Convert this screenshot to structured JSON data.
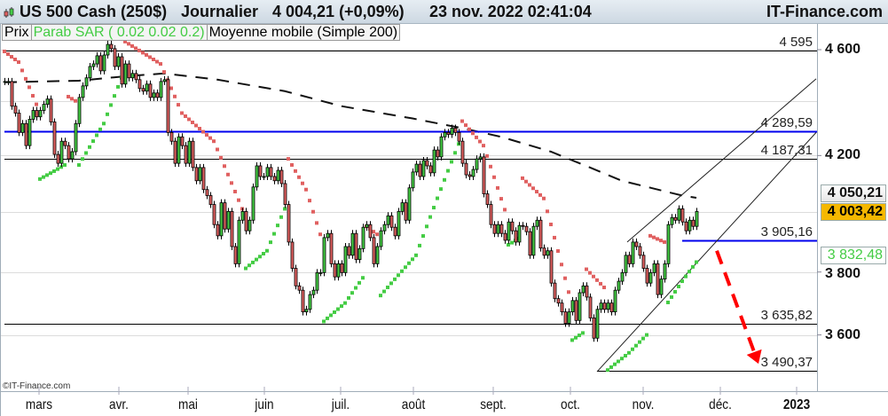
{
  "header": {
    "instrument": "US 500 Cash (250$)",
    "period": "Journalier",
    "last": "4 004,21 (+0,09%)",
    "datetime": "23 nov. 2022 02:41:04",
    "brand": "IT-Finance.com"
  },
  "legend": {
    "price": "Prix",
    "sar": "Parab SAR ( 0.02 0.02 0.2)",
    "ma": "Moyenne mobile (Simple 200)"
  },
  "copyright": "©IT-Finance.com",
  "colors": {
    "up": "#44cc44",
    "down": "#e06060",
    "sar_up": "#44cc44",
    "sar_down": "#e06060",
    "blue_level": "#0000ee",
    "ma": "#111111",
    "arrow": "#ff0000",
    "last_box": "#f5b800"
  },
  "chart_data": {
    "type": "candlestick",
    "y_scale": "log",
    "ylim": [
      3440,
      4780
    ],
    "y_ticks": [
      {
        "value": 4600,
        "label": "4 600"
      },
      {
        "value": 4200,
        "label": "4 200"
      },
      {
        "value": 3800,
        "label": "3 800"
      },
      {
        "value": 3600,
        "label": "3 600"
      }
    ],
    "y_gridlines": [
      4600,
      4400,
      4200,
      4000,
      3800,
      3600
    ],
    "x_ticks": [
      {
        "index": 9.75,
        "label": "mars"
      },
      {
        "index": 32.25,
        "label": "avr."
      },
      {
        "index": 51.75,
        "label": "mai"
      },
      {
        "index": 73.25,
        "label": "juin"
      },
      {
        "index": 94.75,
        "label": "juil."
      },
      {
        "index": 115.25,
        "label": "août"
      },
      {
        "index": 137.75,
        "label": "sept."
      },
      {
        "index": 159.5,
        "label": "oct."
      },
      {
        "index": 180,
        "label": "nov."
      },
      {
        "index": 201.75,
        "label": "déc."
      },
      {
        "index": 223.25,
        "label": "2023",
        "bold": true
      }
    ],
    "closes": [
      4476,
      4476,
      4382,
      4356,
      4284,
      4317,
      4236,
      4333,
      4366,
      4342,
      4366,
      4389,
      4409,
      4323,
      4204,
      4172,
      4252,
      4236,
      4188,
      4214,
      4317,
      4415,
      4459,
      4490,
      4534,
      4544,
      4576,
      4517,
      4579,
      4621,
      4604,
      4534,
      4572,
      4466,
      4544,
      4490,
      4507,
      4483,
      4449,
      4439,
      4466,
      4415,
      4432,
      4415,
      4476,
      4483,
      4284,
      4252,
      4172,
      4268,
      4236,
      4172,
      4252,
      4157,
      4110,
      4157,
      4079,
      4058,
      4027,
      3958,
      3920,
      4033,
      3943,
      4003,
      3884,
      3827,
      3973,
      4003,
      3937,
      3973,
      4088,
      4163,
      4125,
      4125,
      4157,
      4125,
      4110,
      4147,
      4100,
      4027,
      3899,
      3812,
      3755,
      3741,
      3672,
      3680,
      3727,
      3741,
      3798,
      3798,
      3914,
      3928,
      3827,
      3784,
      3827,
      3798,
      3884,
      3855,
      3928,
      3841,
      3877,
      3949,
      3958,
      3914,
      3827,
      3884,
      3937,
      3958,
      3988,
      3949,
      3920,
      4003,
      4033,
      3973,
      4085,
      4141,
      4169,
      4125,
      4182,
      4163,
      4138,
      4220,
      4195,
      4268,
      4284,
      4277,
      4300,
      4284,
      4252,
      4172,
      4131,
      4125,
      4150,
      4188,
      4195,
      4064,
      4027,
      3958,
      3928,
      3958,
      3928,
      3905,
      3967,
      3937,
      3899,
      3955,
      3952,
      3934,
      3855,
      3952,
      3973,
      3879,
      3855,
      3870,
      3764,
      3714,
      3700,
      3672,
      3636,
      3672,
      3708,
      3645,
      3733,
      3755,
      3719,
      3653,
      3590,
      3680,
      3700,
      3680,
      3700,
      3672,
      3741,
      3770,
      3798,
      3855,
      3827,
      3899,
      3884,
      3855,
      3812,
      3764,
      3798,
      3827,
      3727,
      3777,
      3827,
      3958,
      3982,
      3973,
      4012,
      3967,
      3937,
      3973,
      3952,
      4003
    ],
    "sar_segments": [
      {
        "dir": "down",
        "points": [
          [
            0,
            4593
          ],
          [
            4,
            4551
          ],
          [
            9,
            4389
          ]
        ]
      },
      {
        "dir": "up",
        "points": [
          [
            10,
            4116
          ],
          [
            14,
            4144
          ],
          [
            17,
            4166
          ]
        ]
      },
      {
        "dir": "down",
        "points": [
          [
            18,
            4418
          ],
          [
            20,
            4402
          ]
        ]
      },
      {
        "dir": "up",
        "points": [
          [
            21,
            4166
          ],
          [
            28,
            4317
          ],
          [
            33,
            4490
          ]
        ]
      },
      {
        "dir": "down",
        "points": [
          [
            34,
            4632
          ],
          [
            44,
            4544
          ],
          [
            50,
            4356
          ],
          [
            59,
            4252
          ],
          [
            67,
            4012
          ]
        ]
      },
      {
        "dir": "up",
        "points": [
          [
            68,
            3812
          ],
          [
            74,
            3870
          ],
          [
            79,
            4012
          ]
        ]
      },
      {
        "dir": "down",
        "points": [
          [
            80,
            4188
          ],
          [
            85,
            4079
          ],
          [
            89,
            3925
          ]
        ]
      },
      {
        "dir": "up",
        "points": [
          [
            90,
            3642
          ],
          [
            96,
            3700
          ],
          [
            101,
            3781
          ]
        ]
      },
      {
        "dir": "down",
        "points": [
          [
            102,
            3952
          ],
          [
            105,
            3925
          ]
        ]
      },
      {
        "dir": "up",
        "points": [
          [
            106,
            3724
          ],
          [
            116,
            3855
          ],
          [
            128,
            4242
          ]
        ]
      },
      {
        "dir": "down",
        "points": [
          [
            129,
            4326
          ],
          [
            135,
            4236
          ],
          [
            141,
            4009
          ]
        ]
      },
      {
        "dir": "up",
        "points": [
          [
            142,
            3890
          ],
          [
            145,
            3911
          ]
        ]
      },
      {
        "dir": "down",
        "points": [
          [
            146,
            4119
          ],
          [
            152,
            4048
          ],
          [
            159,
            3735
          ]
        ]
      },
      {
        "dir": "up",
        "points": [
          [
            160,
            3584
          ],
          [
            163,
            3606
          ]
        ]
      },
      {
        "dir": "down",
        "points": [
          [
            164,
            3809
          ],
          [
            169,
            3750
          ]
        ]
      },
      {
        "dir": "up",
        "points": [
          [
            170,
            3493
          ],
          [
            176,
            3545
          ],
          [
            181,
            3600
          ]
        ]
      },
      {
        "dir": "down",
        "points": [
          [
            182,
            3920
          ],
          [
            186,
            3899
          ]
        ]
      },
      {
        "dir": "up",
        "points": [
          [
            187,
            3702
          ],
          [
            191,
            3770
          ],
          [
            195,
            3832.48
          ]
        ]
      }
    ],
    "moving_average": [
      [
        0,
        4473
      ],
      [
        21,
        4479
      ],
      [
        34,
        4496
      ],
      [
        45,
        4507
      ],
      [
        60,
        4483
      ],
      [
        79,
        4439
      ],
      [
        95,
        4382
      ],
      [
        115,
        4336
      ],
      [
        129,
        4300
      ],
      [
        140,
        4268
      ],
      [
        154,
        4214
      ],
      [
        165,
        4157
      ],
      [
        174,
        4110
      ],
      [
        191,
        4058
      ],
      [
        195,
        4050.21
      ]
    ],
    "levels": [
      {
        "value": 4595,
        "label": "4 595",
        "color": "black",
        "from_index": 0
      },
      {
        "value": 4289.59,
        "label": "4 289,59",
        "color": "blue",
        "from_index": 0
      },
      {
        "value": 4187.31,
        "label": "4 187,31",
        "color": "black",
        "from_index": 0
      },
      {
        "value": 3905.16,
        "label": "3 905,16",
        "color": "blue",
        "from_index": 191
      },
      {
        "value": 3635.82,
        "label": "3 635,82",
        "color": "black",
        "from_index": 0
      },
      {
        "value": 3490.37,
        "label": "3 490,37",
        "color": "black",
        "from_index": 167
      }
    ],
    "trendlines": [
      [
        [
          175.5,
          3899
        ],
        [
          228.75,
          4486
        ]
      ],
      [
        [
          167,
          3488
        ],
        [
          228.75,
          4284
        ]
      ]
    ],
    "arrow": [
      [
        200.75,
        3870
      ],
      [
        212.5,
        3512
      ]
    ],
    "last_values": {
      "ma": "4 050,21",
      "price": "4 003,42",
      "sar": "3 832,48"
    }
  }
}
